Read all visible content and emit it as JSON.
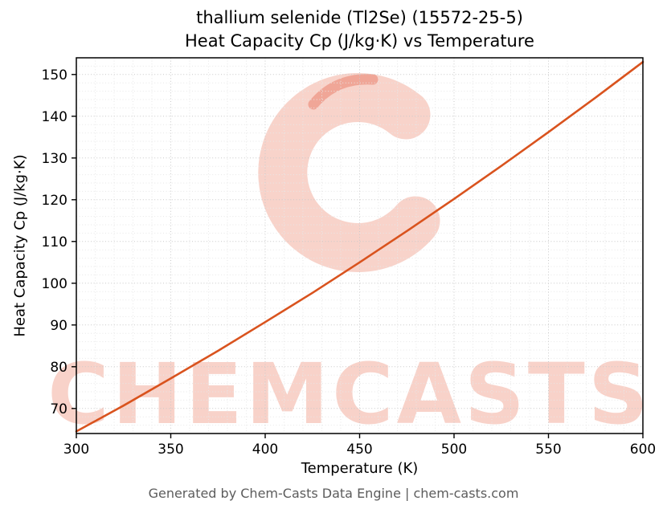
{
  "watermark": {
    "text": "CHEMCASTS"
  },
  "footer": "Generated by Chem-Casts Data Engine | chem-casts.com",
  "chart_data": {
    "type": "line",
    "title_line1": "thallium selenide (Tl2Se) (15572-25-5)",
    "title_line2": "Heat Capacity Cp (J/kg·K) vs Temperature",
    "xlabel": "Temperature (K)",
    "ylabel": "Heat Capacity Cp (J/kg·K)",
    "series_name": "Heat Capacity Cp",
    "x": [
      300,
      325,
      350,
      375,
      400,
      425,
      450,
      475,
      500,
      525,
      550,
      575,
      600
    ],
    "y": [
      64.5,
      70.7,
      77.2,
      83.8,
      90.7,
      97.7,
      105.0,
      112.5,
      120.2,
      128.1,
      136.2,
      144.5,
      153.0
    ],
    "xlim": [
      300,
      600
    ],
    "ylim": [
      64,
      154
    ],
    "xticks": [
      300,
      350,
      400,
      450,
      500,
      550,
      600
    ],
    "yticks": [
      70,
      80,
      90,
      100,
      110,
      120,
      130,
      140,
      150
    ],
    "x_minor_step": 10,
    "y_minor_step": 2,
    "grid": true,
    "legend": "none",
    "line_color": "#d9531e",
    "background": "#ffffff"
  }
}
